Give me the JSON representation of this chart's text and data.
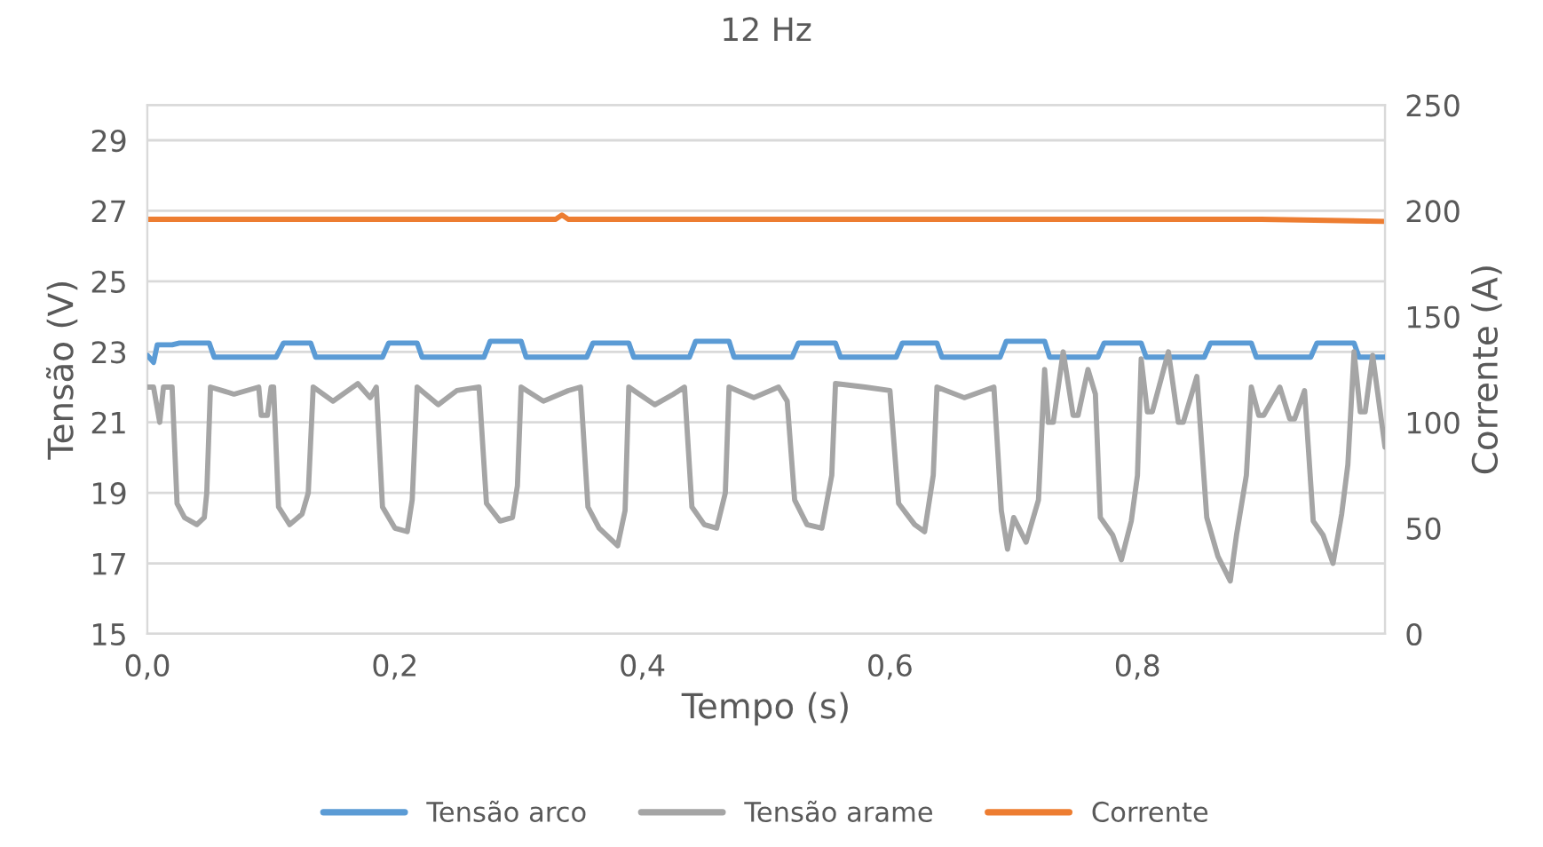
{
  "chart_data": {
    "type": "line",
    "title": "12 Hz",
    "xlabel": "Tempo (s)",
    "ylabel": "Tensão (V)",
    "y2label": "Corrente (A)",
    "xlim": [
      0,
      1.0
    ],
    "xticks": [
      {
        "value": 0,
        "label": "0,0"
      },
      {
        "value": 0.2,
        "label": "0,2"
      },
      {
        "value": 0.4,
        "label": "0,4"
      },
      {
        "value": 0.6,
        "label": "0,6"
      },
      {
        "value": 0.8,
        "label": "0,8"
      }
    ],
    "ylim": [
      15,
      30
    ],
    "yticks": [
      15,
      17,
      19,
      21,
      23,
      25,
      27,
      29
    ],
    "y2lim": [
      0,
      250
    ],
    "y2ticks": [
      0,
      50,
      100,
      150,
      200,
      250
    ],
    "grid": "y",
    "legend": "bottom",
    "marker": "none",
    "line_style": "solid",
    "series": [
      {
        "name": "Tensão arco",
        "color": "#5b9bd5",
        "x": [
          0,
          0.005,
          0.008,
          0.02,
          0.026,
          0.05,
          0.054,
          0.104,
          0.11,
          0.132,
          0.136,
          0.19,
          0.195,
          0.218,
          0.222,
          0.272,
          0.277,
          0.302,
          0.306,
          0.355,
          0.36,
          0.389,
          0.393,
          0.438,
          0.443,
          0.47,
          0.474,
          0.521,
          0.526,
          0.556,
          0.56,
          0.605,
          0.61,
          0.638,
          0.642,
          0.689,
          0.694,
          0.725,
          0.729,
          0.768,
          0.773,
          0.803,
          0.807,
          0.854,
          0.859,
          0.892,
          0.896,
          0.94,
          0.945,
          0.975,
          0.979,
          1.0
        ],
        "values": [
          22.9,
          22.7,
          23.2,
          23.2,
          23.25,
          23.25,
          22.85,
          22.85,
          23.25,
          23.25,
          22.85,
          22.85,
          23.25,
          23.25,
          22.85,
          22.85,
          23.3,
          23.3,
          22.85,
          22.85,
          23.25,
          23.25,
          22.85,
          22.85,
          23.3,
          23.3,
          22.85,
          22.85,
          23.25,
          23.25,
          22.85,
          22.85,
          23.25,
          23.25,
          22.85,
          22.85,
          23.3,
          23.3,
          22.85,
          22.85,
          23.25,
          23.25,
          22.85,
          22.85,
          23.25,
          23.25,
          22.85,
          22.85,
          23.25,
          23.25,
          22.85,
          22.85
        ]
      },
      {
        "name": "Tensão arame",
        "color": "#a5a5a5",
        "x": [
          0,
          0.005,
          0.01,
          0.013,
          0.02,
          0.024,
          0.03,
          0.04,
          0.046,
          0.048,
          0.051,
          0.07,
          0.09,
          0.092,
          0.097,
          0.1,
          0.102,
          0.106,
          0.115,
          0.125,
          0.13,
          0.134,
          0.15,
          0.17,
          0.18,
          0.185,
          0.19,
          0.2,
          0.21,
          0.214,
          0.218,
          0.235,
          0.25,
          0.268,
          0.274,
          0.285,
          0.295,
          0.299,
          0.302,
          0.32,
          0.34,
          0.35,
          0.356,
          0.365,
          0.38,
          0.386,
          0.389,
          0.41,
          0.425,
          0.434,
          0.44,
          0.45,
          0.46,
          0.467,
          0.47,
          0.49,
          0.51,
          0.517,
          0.523,
          0.533,
          0.545,
          0.553,
          0.556,
          0.58,
          0.6,
          0.607,
          0.62,
          0.628,
          0.635,
          0.638,
          0.66,
          0.684,
          0.69,
          0.695,
          0.7,
          0.71,
          0.72,
          0.725,
          0.728,
          0.732,
          0.74,
          0.748,
          0.752,
          0.76,
          0.766,
          0.77,
          0.78,
          0.787,
          0.795,
          0.8,
          0.803,
          0.808,
          0.812,
          0.825,
          0.833,
          0.837,
          0.848,
          0.856,
          0.865,
          0.875,
          0.88,
          0.888,
          0.892,
          0.898,
          0.902,
          0.915,
          0.923,
          0.927,
          0.935,
          0.942,
          0.95,
          0.958,
          0.965,
          0.97,
          0.975,
          0.98,
          0.984,
          0.99,
          1.0
        ],
        "values": [
          22.0,
          22.0,
          21.0,
          22.0,
          22.0,
          18.7,
          18.3,
          18.1,
          18.3,
          19.0,
          22.0,
          21.8,
          22.0,
          21.2,
          21.2,
          22.0,
          22.0,
          18.6,
          18.1,
          18.4,
          19.0,
          22.0,
          21.6,
          22.1,
          21.7,
          22.0,
          18.6,
          18.0,
          17.9,
          18.8,
          22.0,
          21.5,
          21.9,
          22.0,
          18.7,
          18.2,
          18.3,
          19.2,
          22.0,
          21.6,
          21.9,
          22.0,
          18.6,
          18.0,
          17.5,
          18.5,
          22.0,
          21.5,
          21.8,
          22.0,
          18.6,
          18.1,
          18.0,
          19.0,
          22.0,
          21.7,
          22.0,
          21.6,
          18.8,
          18.1,
          18.0,
          19.5,
          22.1,
          22.0,
          21.9,
          18.7,
          18.1,
          17.9,
          19.5,
          22.0,
          21.7,
          22.0,
          18.5,
          17.4,
          18.3,
          17.6,
          18.8,
          22.5,
          21.0,
          21.0,
          23.0,
          21.2,
          21.2,
          22.5,
          21.8,
          18.3,
          17.8,
          17.1,
          18.2,
          19.5,
          22.8,
          21.3,
          21.3,
          23.0,
          21.0,
          21.0,
          22.3,
          18.3,
          17.2,
          16.5,
          17.8,
          19.5,
          22.0,
          21.2,
          21.2,
          22.0,
          21.1,
          21.1,
          21.9,
          18.2,
          17.8,
          17.0,
          18.4,
          19.8,
          23.0,
          21.3,
          21.3,
          22.9,
          20.3
        ]
      },
      {
        "name": "Corrente",
        "color": "#ed7d31",
        "axis": "y2",
        "x": [
          0,
          0.1,
          0.2,
          0.33,
          0.335,
          0.34,
          0.5,
          0.7,
          0.9,
          1.0
        ],
        "values": [
          196,
          196,
          196,
          196,
          198,
          196,
          196,
          196,
          196,
          195
        ]
      }
    ]
  }
}
